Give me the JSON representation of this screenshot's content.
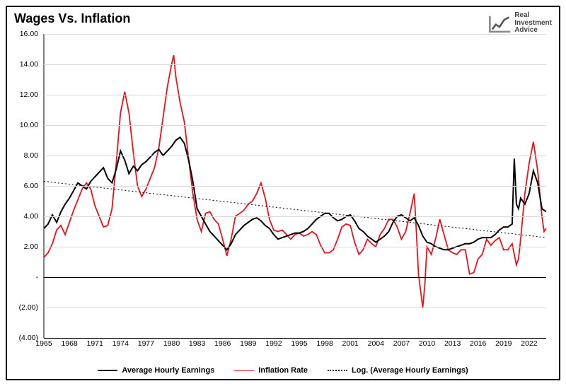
{
  "chart": {
    "type": "line",
    "title": "Wages Vs. Inflation",
    "title_fontsize": 18,
    "logo": {
      "brand_top": "Real",
      "brand_mid": "Investment",
      "brand_bot": "Advice"
    },
    "background_color": "#ffffff",
    "border_color": "#000000",
    "grid_color": "#d9d9d9",
    "axis_color": "#000000",
    "label_fontsize": 10.5,
    "legend_fontsize": 11,
    "x": {
      "min": 1965,
      "max": 2024,
      "ticks": [
        1965,
        1968,
        1971,
        1974,
        1977,
        1980,
        1983,
        1986,
        1989,
        1992,
        1995,
        1998,
        2001,
        2004,
        2007,
        2010,
        2013,
        2016,
        2019,
        2022
      ]
    },
    "y": {
      "min": -4.0,
      "max": 16.0,
      "ticks": [
        -4.0,
        -2.0,
        0.0,
        2.0,
        4.0,
        6.0,
        8.0,
        10.0,
        12.0,
        14.0,
        16.0
      ],
      "labels": [
        "(4.00)",
        "(2.00)",
        "-",
        "2.00",
        "4.00",
        "6.00",
        "8.00",
        "10.00",
        "12.00",
        "14.00",
        "16.00"
      ]
    },
    "series": {
      "wages": {
        "label": "Average Hourly Earnings",
        "color": "#000000",
        "width": 2.0,
        "points": [
          [
            1965,
            3.2
          ],
          [
            1965.5,
            3.5
          ],
          [
            1966,
            4.1
          ],
          [
            1966.5,
            3.6
          ],
          [
            1967,
            4.3
          ],
          [
            1967.5,
            4.8
          ],
          [
            1968,
            5.2
          ],
          [
            1968.5,
            5.7
          ],
          [
            1969,
            6.2
          ],
          [
            1969.5,
            6.0
          ],
          [
            1970,
            5.8
          ],
          [
            1970.5,
            6.3
          ],
          [
            1971,
            6.6
          ],
          [
            1971.5,
            6.9
          ],
          [
            1972,
            7.2
          ],
          [
            1972.5,
            6.5
          ],
          [
            1973,
            6.2
          ],
          [
            1973.5,
            7.1
          ],
          [
            1974,
            8.3
          ],
          [
            1974.5,
            7.7
          ],
          [
            1975,
            6.8
          ],
          [
            1975.5,
            7.3
          ],
          [
            1976,
            7.0
          ],
          [
            1976.5,
            7.4
          ],
          [
            1977,
            7.6
          ],
          [
            1977.5,
            7.9
          ],
          [
            1978,
            8.2
          ],
          [
            1978.5,
            8.4
          ],
          [
            1979,
            8.0
          ],
          [
            1979.5,
            8.3
          ],
          [
            1980,
            8.6
          ],
          [
            1980.5,
            9.0
          ],
          [
            1981,
            9.2
          ],
          [
            1981.5,
            8.8
          ],
          [
            1982,
            7.7
          ],
          [
            1982.5,
            6.3
          ],
          [
            1983,
            4.5
          ],
          [
            1983.5,
            4.0
          ],
          [
            1984,
            3.5
          ],
          [
            1984.5,
            3.0
          ],
          [
            1985,
            2.7
          ],
          [
            1985.5,
            2.4
          ],
          [
            1986,
            2.1
          ],
          [
            1986.5,
            1.8
          ],
          [
            1987,
            2.2
          ],
          [
            1987.5,
            2.8
          ],
          [
            1988,
            3.1
          ],
          [
            1988.5,
            3.4
          ],
          [
            1989,
            3.6
          ],
          [
            1989.5,
            3.8
          ],
          [
            1990,
            3.9
          ],
          [
            1990.5,
            3.7
          ],
          [
            1991,
            3.4
          ],
          [
            1991.5,
            3.2
          ],
          [
            1992,
            2.8
          ],
          [
            1992.5,
            2.5
          ],
          [
            1993,
            2.6
          ],
          [
            1993.5,
            2.7
          ],
          [
            1994,
            2.8
          ],
          [
            1994.5,
            2.9
          ],
          [
            1995,
            2.9
          ],
          [
            1995.5,
            3.0
          ],
          [
            1996,
            3.2
          ],
          [
            1996.5,
            3.5
          ],
          [
            1997,
            3.8
          ],
          [
            1997.5,
            4.0
          ],
          [
            1998,
            4.2
          ],
          [
            1998.5,
            4.2
          ],
          [
            1999,
            3.9
          ],
          [
            1999.5,
            3.7
          ],
          [
            2000,
            3.8
          ],
          [
            2000.5,
            4.0
          ],
          [
            2001,
            4.1
          ],
          [
            2001.5,
            3.7
          ],
          [
            2002,
            3.2
          ],
          [
            2002.5,
            3.0
          ],
          [
            2003,
            2.7
          ],
          [
            2003.5,
            2.5
          ],
          [
            2004,
            2.3
          ],
          [
            2004.5,
            2.5
          ],
          [
            2005,
            2.7
          ],
          [
            2005.5,
            3.0
          ],
          [
            2006,
            3.6
          ],
          [
            2006.5,
            4.0
          ],
          [
            2007,
            4.1
          ],
          [
            2007.5,
            3.9
          ],
          [
            2008,
            3.7
          ],
          [
            2008.5,
            3.9
          ],
          [
            2009,
            3.4
          ],
          [
            2009.5,
            2.7
          ],
          [
            2010,
            2.3
          ],
          [
            2010.5,
            2.2
          ],
          [
            2011,
            2.0
          ],
          [
            2011.5,
            1.9
          ],
          [
            2012,
            1.8
          ],
          [
            2012.5,
            1.8
          ],
          [
            2013,
            1.9
          ],
          [
            2013.5,
            2.0
          ],
          [
            2014,
            2.1
          ],
          [
            2014.5,
            2.2
          ],
          [
            2015,
            2.2
          ],
          [
            2015.5,
            2.3
          ],
          [
            2016,
            2.5
          ],
          [
            2016.5,
            2.6
          ],
          [
            2017,
            2.6
          ],
          [
            2017.5,
            2.6
          ],
          [
            2018,
            2.8
          ],
          [
            2018.5,
            3.1
          ],
          [
            2019,
            3.3
          ],
          [
            2019.5,
            3.3
          ],
          [
            2020,
            3.5
          ],
          [
            2020.25,
            7.8
          ],
          [
            2020.5,
            4.8
          ],
          [
            2020.75,
            4.5
          ],
          [
            2021,
            5.2
          ],
          [
            2021.5,
            4.8
          ],
          [
            2022,
            5.5
          ],
          [
            2022.5,
            7.0
          ],
          [
            2023,
            6.2
          ],
          [
            2023.5,
            4.5
          ],
          [
            2024,
            4.3
          ]
        ]
      },
      "inflation": {
        "label": "Inflation Rate",
        "color": "#e8121b",
        "width": 1.8,
        "points": [
          [
            1965,
            1.3
          ],
          [
            1965.5,
            1.6
          ],
          [
            1966,
            2.2
          ],
          [
            1966.5,
            3.1
          ],
          [
            1967,
            3.4
          ],
          [
            1967.5,
            2.8
          ],
          [
            1968,
            3.6
          ],
          [
            1968.5,
            4.4
          ],
          [
            1969,
            5.1
          ],
          [
            1969.5,
            5.8
          ],
          [
            1970,
            6.2
          ],
          [
            1970.5,
            5.8
          ],
          [
            1971,
            4.7
          ],
          [
            1971.5,
            4.0
          ],
          [
            1972,
            3.3
          ],
          [
            1972.5,
            3.4
          ],
          [
            1973,
            4.5
          ],
          [
            1973.5,
            7.5
          ],
          [
            1974,
            10.8
          ],
          [
            1974.5,
            12.2
          ],
          [
            1975,
            10.8
          ],
          [
            1975.5,
            8.2
          ],
          [
            1976,
            6.0
          ],
          [
            1976.5,
            5.3
          ],
          [
            1977,
            5.8
          ],
          [
            1977.5,
            6.5
          ],
          [
            1978,
            7.2
          ],
          [
            1978.5,
            8.5
          ],
          [
            1979,
            10.5
          ],
          [
            1979.5,
            12.5
          ],
          [
            1980,
            14.0
          ],
          [
            1980.25,
            14.6
          ],
          [
            1980.5,
            13.2
          ],
          [
            1981,
            11.5
          ],
          [
            1981.5,
            10.2
          ],
          [
            1982,
            7.8
          ],
          [
            1982.5,
            5.5
          ],
          [
            1983,
            3.8
          ],
          [
            1983.5,
            3.0
          ],
          [
            1984,
            4.2
          ],
          [
            1984.5,
            4.3
          ],
          [
            1985,
            3.8
          ],
          [
            1985.5,
            3.5
          ],
          [
            1986,
            2.5
          ],
          [
            1986.5,
            1.4
          ],
          [
            1987,
            2.5
          ],
          [
            1987.5,
            4.0
          ],
          [
            1988,
            4.2
          ],
          [
            1988.5,
            4.4
          ],
          [
            1989,
            4.8
          ],
          [
            1989.5,
            5.0
          ],
          [
            1990,
            5.5
          ],
          [
            1990.5,
            6.2
          ],
          [
            1991,
            5.2
          ],
          [
            1991.5,
            3.8
          ],
          [
            1992,
            3.1
          ],
          [
            1992.5,
            3.0
          ],
          [
            1993,
            3.1
          ],
          [
            1993.5,
            2.8
          ],
          [
            1994,
            2.5
          ],
          [
            1994.5,
            2.8
          ],
          [
            1995,
            2.9
          ],
          [
            1995.5,
            2.7
          ],
          [
            1996,
            2.8
          ],
          [
            1996.5,
            3.0
          ],
          [
            1997,
            2.8
          ],
          [
            1997.5,
            2.1
          ],
          [
            1998,
            1.6
          ],
          [
            1998.5,
            1.6
          ],
          [
            1999,
            1.8
          ],
          [
            1999.5,
            2.5
          ],
          [
            2000,
            3.3
          ],
          [
            2000.5,
            3.5
          ],
          [
            2001,
            3.4
          ],
          [
            2001.5,
            2.3
          ],
          [
            2002,
            1.5
          ],
          [
            2002.5,
            1.8
          ],
          [
            2003,
            2.5
          ],
          [
            2003.5,
            2.2
          ],
          [
            2004,
            2.0
          ],
          [
            2004.5,
            2.8
          ],
          [
            2005,
            3.2
          ],
          [
            2005.5,
            3.8
          ],
          [
            2006,
            3.8
          ],
          [
            2006.5,
            3.3
          ],
          [
            2007,
            2.5
          ],
          [
            2007.5,
            3.0
          ],
          [
            2008,
            4.2
          ],
          [
            2008.5,
            5.5
          ],
          [
            2008.75,
            3.0
          ],
          [
            2009,
            0.2
          ],
          [
            2009.5,
            -2.0
          ],
          [
            2009.75,
            -0.5
          ],
          [
            2010,
            2.0
          ],
          [
            2010.5,
            1.5
          ],
          [
            2011,
            2.5
          ],
          [
            2011.5,
            3.8
          ],
          [
            2012,
            2.8
          ],
          [
            2012.5,
            1.8
          ],
          [
            2013,
            1.6
          ],
          [
            2013.5,
            1.5
          ],
          [
            2014,
            1.8
          ],
          [
            2014.5,
            1.8
          ],
          [
            2015,
            0.2
          ],
          [
            2015.5,
            0.3
          ],
          [
            2016,
            1.2
          ],
          [
            2016.5,
            1.5
          ],
          [
            2017,
            2.5
          ],
          [
            2017.5,
            2.1
          ],
          [
            2018,
            2.4
          ],
          [
            2018.5,
            2.6
          ],
          [
            2019,
            1.8
          ],
          [
            2019.5,
            1.8
          ],
          [
            2020,
            2.2
          ],
          [
            2020.5,
            0.8
          ],
          [
            2020.75,
            1.2
          ],
          [
            2021,
            2.5
          ],
          [
            2021.5,
            5.5
          ],
          [
            2022,
            7.5
          ],
          [
            2022.5,
            8.9
          ],
          [
            2023,
            7.0
          ],
          [
            2023.5,
            4.0
          ],
          [
            2023.75,
            3.0
          ],
          [
            2024,
            3.2
          ]
        ]
      },
      "trend": {
        "label": "Log. (Average Hourly Earnings)",
        "color": "#000000",
        "width": 1.0,
        "dash": "2,3",
        "points": [
          [
            1965,
            6.3
          ],
          [
            2024,
            2.6
          ]
        ]
      }
    }
  }
}
